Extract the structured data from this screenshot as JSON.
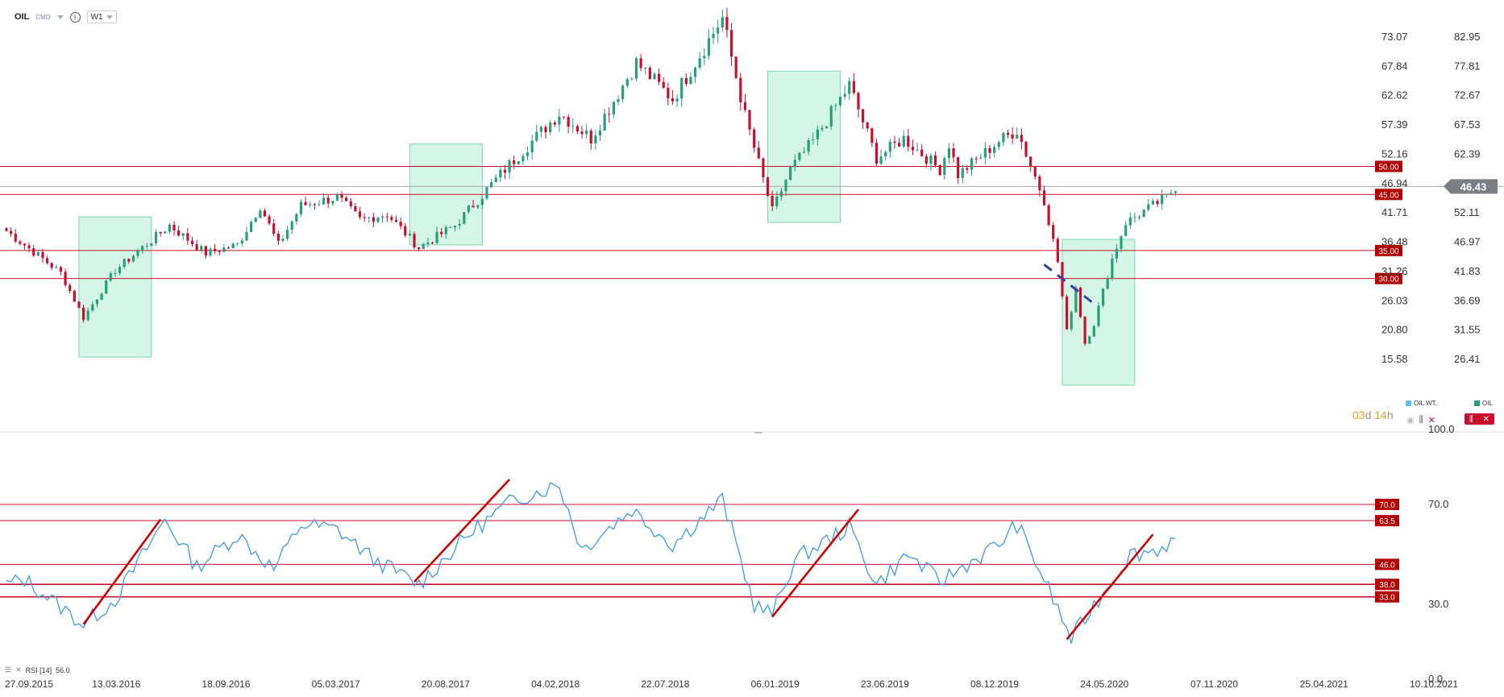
{
  "toolbar": {
    "symbol": "OIL",
    "category": "CMD",
    "timeframe": "W1"
  },
  "price_axis": {
    "left_labels": [
      "73.07",
      "67.84",
      "62.62",
      "57.39",
      "52.16",
      "46.94",
      "41.71",
      "36.48",
      "31.26",
      "26.03",
      "20.80",
      "15.58"
    ],
    "right_labels": [
      "82.95",
      "77.81",
      "72.67",
      "67.53",
      "62.39",
      "57.25",
      "52.11",
      "46.97",
      "41.83",
      "36.69",
      "31.55",
      "26.41"
    ],
    "current_price": "46.43"
  },
  "price_levels": [
    "50.00",
    "45.00",
    "35.00",
    "30.00"
  ],
  "rsi_axis": {
    "labels": [
      "100.0",
      "70.0",
      "30.0",
      "0.0"
    ]
  },
  "rsi_levels": [
    "70.0",
    "63.5",
    "46.0",
    "38.0",
    "33.0"
  ],
  "x_axis": {
    "labels": [
      "27.09.2015",
      "13.03.2016",
      "18.09.2016",
      "05.03.2017",
      "20.08.2017",
      "04.02.2018",
      "22.07.2018",
      "06.01.2019",
      "23.06.2019",
      "08.12.2019",
      "24.05.2020",
      "07.11.2020",
      "25.04.2021",
      "10.10.2021"
    ]
  },
  "indicator_label": "RSI [14]",
  "indicator_value": "56.0",
  "countdown": {
    "days": "03",
    "d_unit": "d",
    "hours": "14",
    "h_unit": "h"
  },
  "legends": {
    "wti": "OIL.WT..",
    "oil": "OIL"
  },
  "colors": {
    "up": "#26a07a",
    "down": "#c8102e",
    "level": "#c8102e",
    "rsi": "#3a9be8",
    "zone": "#d5f5e6"
  },
  "chart_data": [
    {
      "type": "candlestick",
      "ylabel": "",
      "ylim": [
        10.5,
        85
      ],
      "price_scale_right": {
        "at_left_value": 15.58,
        "value": 26.41,
        "at_left_value_2": 73.07,
        "value_2": 82.95
      },
      "anchors": [
        {
          "date": "2015-09-27",
          "close": 38.5
        },
        {
          "date": "2015-12-20",
          "close": 31.0
        },
        {
          "date": "2016-01-24",
          "close": 23.0
        },
        {
          "date": "2016-03-13",
          "close": 31.5
        },
        {
          "date": "2016-06-05",
          "close": 39.5
        },
        {
          "date": "2016-07-31",
          "close": 34.5
        },
        {
          "date": "2016-09-18",
          "close": 36.0
        },
        {
          "date": "2016-10-23",
          "close": 43.0
        },
        {
          "date": "2016-11-20",
          "close": 36.0
        },
        {
          "date": "2016-12-25",
          "close": 43.0
        },
        {
          "date": "2017-02-19",
          "close": 44.5
        },
        {
          "date": "2017-03-26",
          "close": 40.5
        },
        {
          "date": "2017-05-07",
          "close": 41.5
        },
        {
          "date": "2017-06-25",
          "close": 35.5
        },
        {
          "date": "2017-08-20",
          "close": 39.5
        },
        {
          "date": "2017-11-05",
          "close": 49.5
        },
        {
          "date": "2018-01-28",
          "close": 59.5
        },
        {
          "date": "2018-03-18",
          "close": 55.0
        },
        {
          "date": "2018-05-27",
          "close": 68.5
        },
        {
          "date": "2018-07-22",
          "close": 62.0
        },
        {
          "date": "2018-10-07",
          "close": 76.5
        },
        {
          "date": "2018-11-11",
          "close": 59.0
        },
        {
          "date": "2018-12-23",
          "close": 42.0
        },
        {
          "date": "2019-01-20",
          "close": 49.5
        },
        {
          "date": "2019-02-24",
          "close": 54.5
        },
        {
          "date": "2019-04-21",
          "close": 64.5
        },
        {
          "date": "2019-06-02",
          "close": 51.5
        },
        {
          "date": "2019-07-14",
          "close": 55.0
        },
        {
          "date": "2019-09-08",
          "close": 49.5
        },
        {
          "date": "2019-09-22",
          "close": 54.0
        },
        {
          "date": "2019-10-06",
          "close": 48.5
        },
        {
          "date": "2019-12-08",
          "close": 54.5
        },
        {
          "date": "2020-01-05",
          "close": 56.5
        },
        {
          "date": "2020-02-16",
          "close": 44.0
        },
        {
          "date": "2020-03-08",
          "close": 33.0
        },
        {
          "date": "2020-03-22",
          "close": 20.5
        },
        {
          "date": "2020-04-05",
          "close": 28.5
        },
        {
          "date": "2020-04-19",
          "close": 18.5
        },
        {
          "date": "2020-05-03",
          "close": 22.0
        },
        {
          "date": "2020-05-31",
          "close": 33.5
        },
        {
          "date": "2020-06-21",
          "close": 40.0
        },
        {
          "date": "2020-08-23",
          "close": 44.5
        },
        {
          "date": "2020-09-06",
          "close": 46.4
        }
      ],
      "horizontal_levels": [
        50,
        45,
        35,
        30
      ],
      "zones": [
        {
          "from": "2016-01-17",
          "to": "2016-05-08",
          "low": 16,
          "high": 41
        },
        {
          "from": "2017-06-11",
          "to": "2017-10-01",
          "low": 36,
          "high": 54
        },
        {
          "from": "2018-12-16",
          "to": "2019-04-07",
          "low": 40,
          "high": 67
        },
        {
          "from": "2020-03-15",
          "to": "2020-07-05",
          "low": 11,
          "high": 37
        }
      ],
      "trend_lines": [
        {
          "color": "#33429a",
          "dashed": true,
          "from": {
            "date": "2020-02-16",
            "value": 32.5
          },
          "to": {
            "date": "2020-05-03",
            "value": 25.5
          }
        }
      ]
    },
    {
      "type": "line",
      "indicator": "RSI [14]",
      "ylim": [
        0,
        100
      ],
      "levels": [
        70,
        63.5,
        46,
        38,
        33
      ],
      "anchors": [
        {
          "date": "2015-09-27",
          "value": 38
        },
        {
          "date": "2015-10-25",
          "value": 40
        },
        {
          "date": "2016-01-24",
          "value": 22
        },
        {
          "date": "2016-03-13",
          "value": 32
        },
        {
          "date": "2016-05-29",
          "value": 64
        },
        {
          "date": "2016-07-17",
          "value": 45
        },
        {
          "date": "2016-09-18",
          "value": 58
        },
        {
          "date": "2016-11-13",
          "value": 44
        },
        {
          "date": "2016-12-25",
          "value": 62
        },
        {
          "date": "2017-02-19",
          "value": 60
        },
        {
          "date": "2017-04-16",
          "value": 48
        },
        {
          "date": "2017-06-25",
          "value": 38
        },
        {
          "date": "2017-09-10",
          "value": 58
        },
        {
          "date": "2017-11-19",
          "value": 72
        },
        {
          "date": "2018-01-28",
          "value": 78
        },
        {
          "date": "2018-03-04",
          "value": 52
        },
        {
          "date": "2018-05-20",
          "value": 68
        },
        {
          "date": "2018-07-22",
          "value": 54
        },
        {
          "date": "2018-10-07",
          "value": 72
        },
        {
          "date": "2018-11-25",
          "value": 30
        },
        {
          "date": "2018-12-23",
          "value": 26
        },
        {
          "date": "2019-01-27",
          "value": 48
        },
        {
          "date": "2019-04-21",
          "value": 61
        },
        {
          "date": "2019-06-02",
          "value": 38
        },
        {
          "date": "2019-07-21",
          "value": 50
        },
        {
          "date": "2019-09-08",
          "value": 39
        },
        {
          "date": "2019-10-13",
          "value": 45
        },
        {
          "date": "2019-12-08",
          "value": 54
        },
        {
          "date": "2020-01-05",
          "value": 62
        },
        {
          "date": "2020-02-16",
          "value": 40
        },
        {
          "date": "2020-03-29",
          "value": 16
        },
        {
          "date": "2020-04-26",
          "value": 27
        },
        {
          "date": "2020-06-28",
          "value": 50
        },
        {
          "date": "2020-08-09",
          "value": 52
        },
        {
          "date": "2020-09-06",
          "value": 56
        }
      ],
      "trend_lines": [
        {
          "from": {
            "date": "2016-01-24",
            "value": 22
          },
          "to": {
            "date": "2016-05-22",
            "value": 64
          }
        },
        {
          "from": {
            "date": "2017-06-18",
            "value": 39
          },
          "to": {
            "date": "2017-11-12",
            "value": 80
          }
        },
        {
          "from": {
            "date": "2018-12-23",
            "value": 25
          },
          "to": {
            "date": "2019-05-05",
            "value": 68
          }
        },
        {
          "from": {
            "date": "2020-03-22",
            "value": 16
          },
          "to": {
            "date": "2020-08-02",
            "value": 58
          }
        }
      ]
    }
  ]
}
